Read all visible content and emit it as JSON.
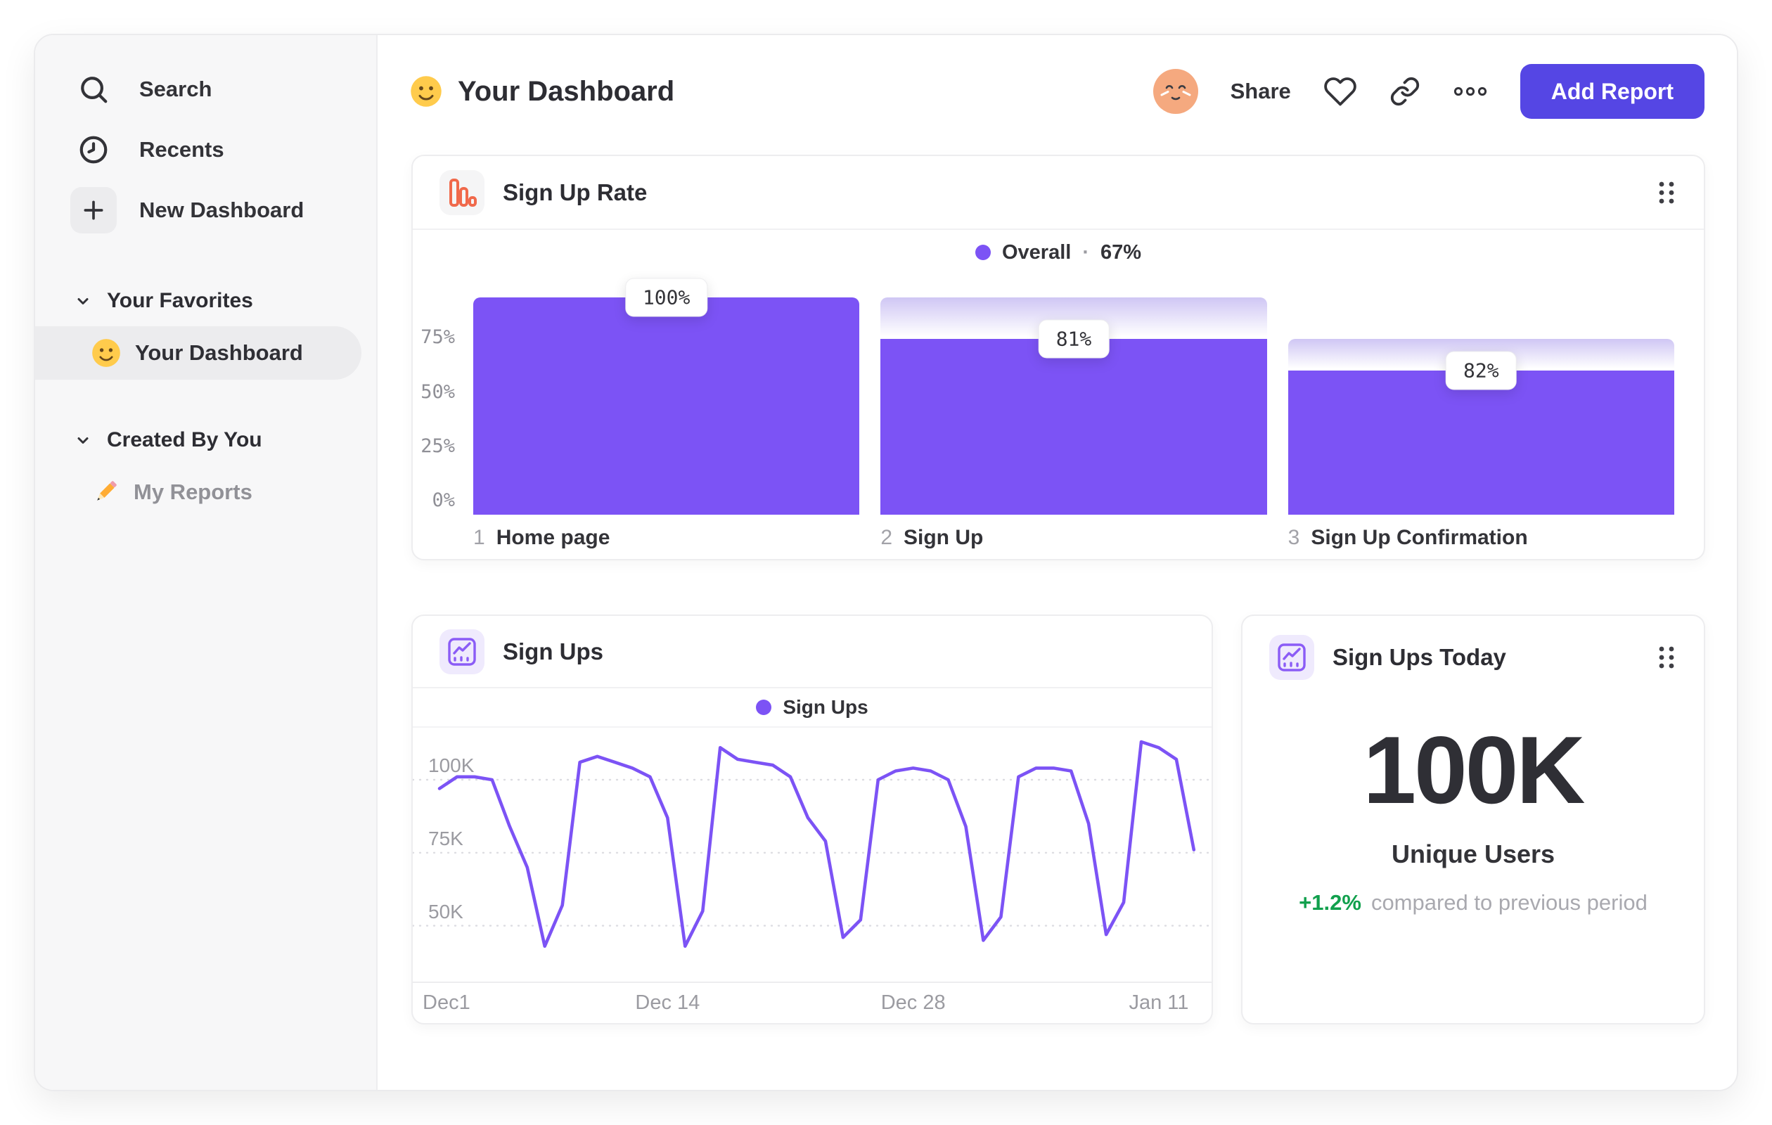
{
  "colors": {
    "purple": "#7C53F5",
    "ghost": "#CFC6F4",
    "button": "#5546E4",
    "orange": "#F0694B",
    "green": "#11A04D",
    "ink": "#333338",
    "gray": "#9B9BA1"
  },
  "sidebar": {
    "items": [
      {
        "label": "Search"
      },
      {
        "label": "Recents"
      },
      {
        "label": "New Dashboard"
      }
    ],
    "sections": [
      {
        "title": "Your Favorites",
        "item": "Your Dashboard"
      },
      {
        "title": "Created By You",
        "item": "My Reports"
      }
    ]
  },
  "header": {
    "title": "Your Dashboard",
    "share": "Share",
    "add_report": "Add Report"
  },
  "cards": {
    "funnel": {
      "title": "Sign Up Rate",
      "legend_name": "Overall",
      "legend_sep": "·",
      "legend_value": "67%"
    },
    "line": {
      "title": "Sign Ups",
      "legend_name": "Sign Ups"
    },
    "today": {
      "title": "Sign Ups Today",
      "value": "100K",
      "label": "Unique Users",
      "delta": "+1.2%",
      "delta_text": "compared to previous period"
    }
  },
  "chart_data": [
    {
      "type": "bar",
      "variant": "funnel",
      "title": "Sign Up Rate",
      "legend": {
        "series": "Overall",
        "overall_conversion": "67%"
      },
      "ylim": [
        0,
        100
      ],
      "y_ticks": [
        {
          "label": "75%",
          "value": 75
        },
        {
          "label": "50%",
          "value": 50
        },
        {
          "label": "25%",
          "value": 25
        },
        {
          "label": "0%",
          "value": 0
        }
      ],
      "steps": [
        {
          "index": "1",
          "name": "Home page",
          "step_conversion_label": "100%",
          "height_pct": 100,
          "prev_height_pct": 100
        },
        {
          "index": "2",
          "name": "Sign Up",
          "step_conversion_label": "81%",
          "height_pct": 81,
          "prev_height_pct": 100
        },
        {
          "index": "3",
          "name": "Sign Up Confirmation",
          "step_conversion_label": "82%",
          "height_pct": 66.4,
          "prev_height_pct": 81
        }
      ]
    },
    {
      "type": "line",
      "title": "Sign Ups",
      "unit": "K",
      "grid": "dotted horizontal",
      "legend_position": "top center",
      "y_ticks": [
        {
          "label": "100K",
          "value": 100
        },
        {
          "label": "75K",
          "value": 75
        },
        {
          "label": "50K",
          "value": 50
        }
      ],
      "x_tick_labels": [
        {
          "label": "Dec1",
          "index": 0
        },
        {
          "label": "Dec 14",
          "index": 13
        },
        {
          "label": "Dec 28",
          "index": 27
        },
        {
          "label": "Jan 11",
          "index": 41
        }
      ],
      "series": [
        {
          "name": "Sign Ups",
          "values_k": [
            97,
            101,
            101,
            100,
            84,
            70,
            43,
            57,
            106,
            108,
            106,
            104,
            101,
            87,
            43,
            55,
            111,
            107,
            106,
            105,
            101,
            87,
            79,
            46,
            52,
            100,
            103,
            104,
            103,
            100,
            84,
            45,
            53,
            101,
            104,
            104,
            103,
            85,
            47,
            58,
            113,
            111,
            107,
            76
          ]
        }
      ]
    }
  ]
}
